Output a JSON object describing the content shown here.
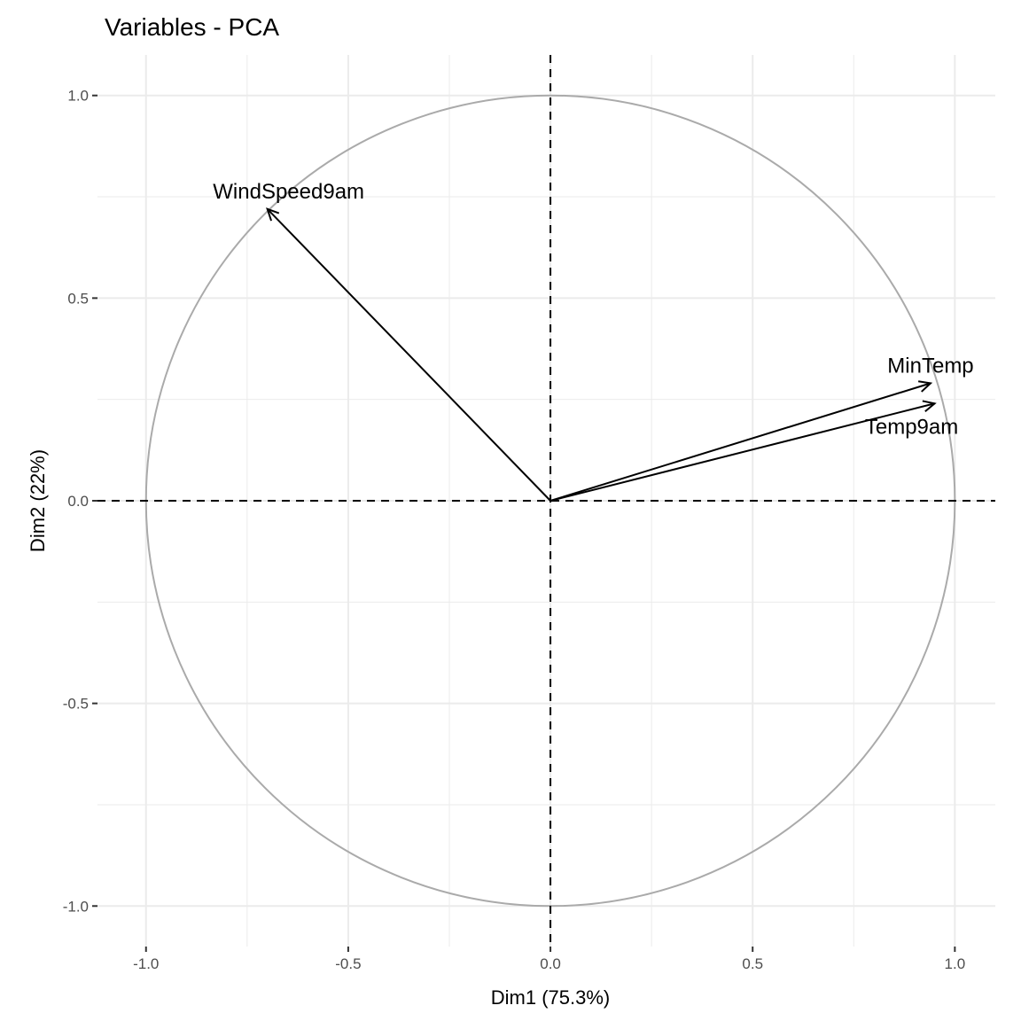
{
  "chart_data": {
    "type": "scatter",
    "title": "Variables - PCA",
    "xlabel": "Dim1 (75.3%)",
    "ylabel": "Dim2 (22%)",
    "xlim": [
      -1.12,
      1.1
    ],
    "ylim": [
      -1.1,
      1.1
    ],
    "grid": true,
    "x_ticks": [
      -1.0,
      -0.5,
      0.0,
      0.5,
      1.0
    ],
    "y_ticks": [
      -1.0,
      -0.5,
      0.0,
      0.5,
      1.0
    ],
    "x_tick_labels": [
      "-1.0",
      "-0.5",
      "0.0",
      "0.5",
      "1.0"
    ],
    "y_tick_labels": [
      "-1.0",
      "-0.5",
      "0.0",
      "0.5",
      "1.0"
    ],
    "correlation_circle_radius": 1.0,
    "variables": [
      {
        "name": "WindSpeed9am",
        "x": -0.7,
        "y": 0.72
      },
      {
        "name": "MinTemp",
        "x": 0.94,
        "y": 0.29
      },
      {
        "name": "Temp9am",
        "x": 0.95,
        "y": 0.24
      }
    ],
    "colors": {
      "arrow": "#000000",
      "circle": "#aaaaaa",
      "grid": "#ebebeb"
    }
  }
}
